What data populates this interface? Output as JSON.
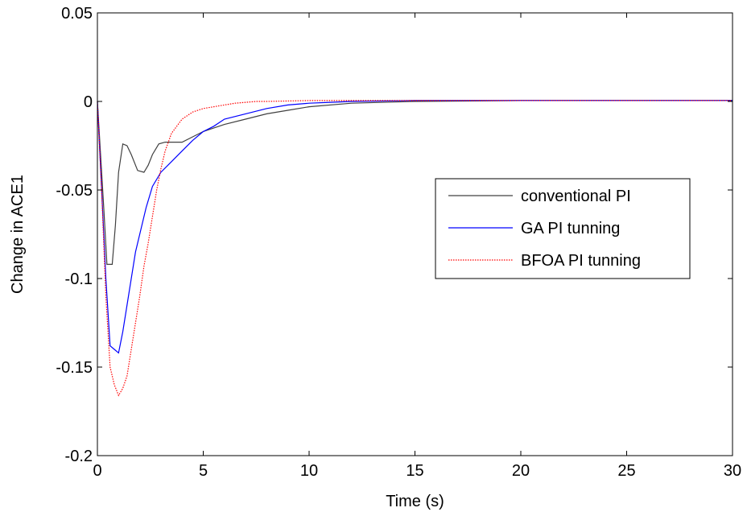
{
  "chart_data": {
    "type": "line",
    "title": "",
    "xlabel": "Time (s)",
    "ylabel": "Change in ACE1",
    "xlim": [
      0,
      30
    ],
    "ylim": [
      -0.2,
      0.05
    ],
    "xticks": [
      0,
      5,
      10,
      15,
      20,
      25,
      30
    ],
    "xtick_labels": [
      "0",
      "5",
      "10",
      "15",
      "20",
      "25",
      "30"
    ],
    "yticks": [
      -0.2,
      -0.15,
      -0.1,
      -0.05,
      0,
      0.05
    ],
    "ytick_labels": [
      "-0.2",
      "-0.15",
      "-0.1",
      "-0.05",
      "0",
      "0.05"
    ],
    "grid": false,
    "legend_position": "right",
    "series": [
      {
        "name": "conventional PI",
        "color": "#404040",
        "dash": "solid",
        "x": [
          0,
          0.15,
          0.3,
          0.45,
          0.7,
          0.85,
          1.0,
          1.2,
          1.4,
          1.6,
          1.9,
          2.2,
          2.4,
          2.6,
          2.9,
          3.2,
          3.5,
          4.0,
          4.5,
          5.0,
          6.0,
          7.0,
          8.0,
          9.0,
          10.0,
          12.0,
          15.0,
          20.0,
          25.0,
          30.0
        ],
        "y": [
          0,
          -0.03,
          -0.06,
          -0.092,
          -0.092,
          -0.07,
          -0.04,
          -0.024,
          -0.025,
          -0.03,
          -0.039,
          -0.04,
          -0.036,
          -0.03,
          -0.024,
          -0.023,
          -0.023,
          -0.023,
          -0.02,
          -0.017,
          -0.013,
          -0.01,
          -0.007,
          -0.005,
          -0.003,
          -0.001,
          0,
          0.0005,
          0.0005,
          0.0005
        ]
      },
      {
        "name": "GA PI tunning",
        "color": "#0000ff",
        "dash": "solid",
        "x": [
          0,
          0.2,
          0.4,
          0.6,
          0.8,
          1.0,
          1.2,
          1.4,
          1.6,
          1.8,
          2.0,
          2.3,
          2.6,
          3.0,
          3.5,
          4.0,
          4.5,
          5.0,
          5.5,
          6.0,
          7.0,
          8.0,
          9.0,
          10.0,
          11.0,
          12.0,
          15.0,
          20.0,
          25.0,
          30.0
        ],
        "y": [
          0,
          -0.05,
          -0.1,
          -0.138,
          -0.14,
          -0.142,
          -0.13,
          -0.115,
          -0.1,
          -0.085,
          -0.075,
          -0.06,
          -0.048,
          -0.04,
          -0.034,
          -0.028,
          -0.022,
          -0.017,
          -0.014,
          -0.01,
          -0.007,
          -0.004,
          -0.002,
          -0.001,
          -0.0005,
          0,
          0.0005,
          0.0005,
          0.0005,
          0.0005
        ]
      },
      {
        "name": "BFOA PI tunning",
        "color": "#ff0000",
        "dash": "dotted",
        "x": [
          0,
          0.2,
          0.4,
          0.6,
          0.8,
          1.0,
          1.2,
          1.4,
          1.6,
          1.8,
          2.0,
          2.2,
          2.4,
          2.6,
          2.8,
          3.0,
          3.2,
          3.5,
          4.0,
          4.5,
          5.0,
          5.5,
          6.0,
          6.5,
          7.0,
          7.5,
          8.0,
          10.0,
          15.0,
          20.0,
          25.0,
          30.0
        ],
        "y": [
          0,
          -0.05,
          -0.11,
          -0.15,
          -0.16,
          -0.166,
          -0.162,
          -0.155,
          -0.14,
          -0.125,
          -0.11,
          -0.093,
          -0.08,
          -0.065,
          -0.05,
          -0.038,
          -0.028,
          -0.018,
          -0.01,
          -0.006,
          -0.004,
          -0.003,
          -0.002,
          -0.001,
          -0.0005,
          0,
          0,
          0.0005,
          0.0005,
          0.0005,
          0.0005,
          0.0005
        ]
      }
    ]
  }
}
